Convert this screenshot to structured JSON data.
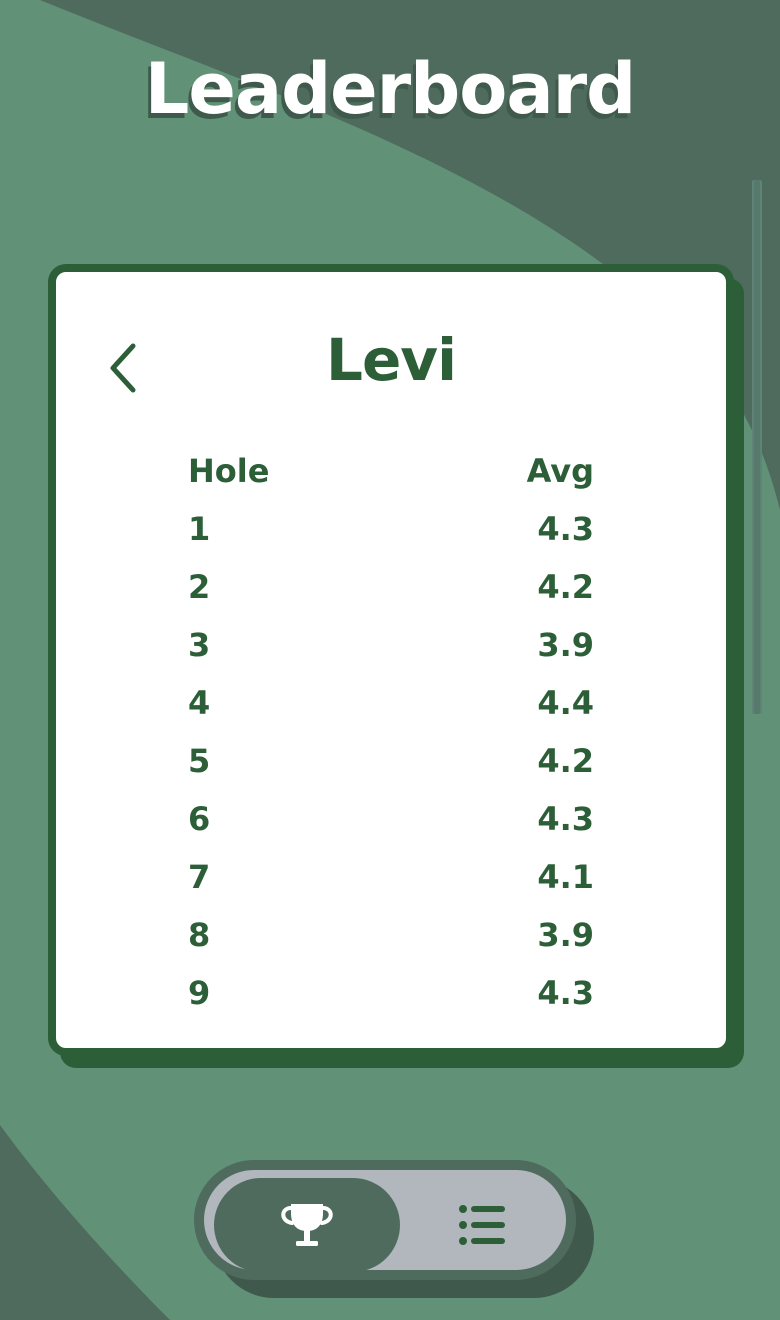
{
  "header": {
    "title": "Leaderboard"
  },
  "card": {
    "back_icon": "chevron-left-icon",
    "player_name": "Levi",
    "columns": [
      "Hole",
      "Avg"
    ],
    "rows": [
      {
        "hole": "1",
        "avg": "4.3"
      },
      {
        "hole": "2",
        "avg": "4.2"
      },
      {
        "hole": "3",
        "avg": "3.9"
      },
      {
        "hole": "4",
        "avg": "4.4"
      },
      {
        "hole": "5",
        "avg": "4.2"
      },
      {
        "hole": "6",
        "avg": "4.3"
      },
      {
        "hole": "7",
        "avg": "4.1"
      },
      {
        "hole": "8",
        "avg": "3.9"
      },
      {
        "hole": "9",
        "avg": "4.3"
      }
    ]
  },
  "bottom_nav": {
    "items": [
      {
        "icon": "trophy-icon",
        "active": true
      },
      {
        "icon": "list-icon",
        "active": false
      }
    ]
  },
  "colors": {
    "background_dark": "#4e6b5d",
    "background_light": "#619177",
    "accent": "#2c5e38",
    "card": "#ffffff",
    "nav_pill": "#b2b6bd"
  }
}
